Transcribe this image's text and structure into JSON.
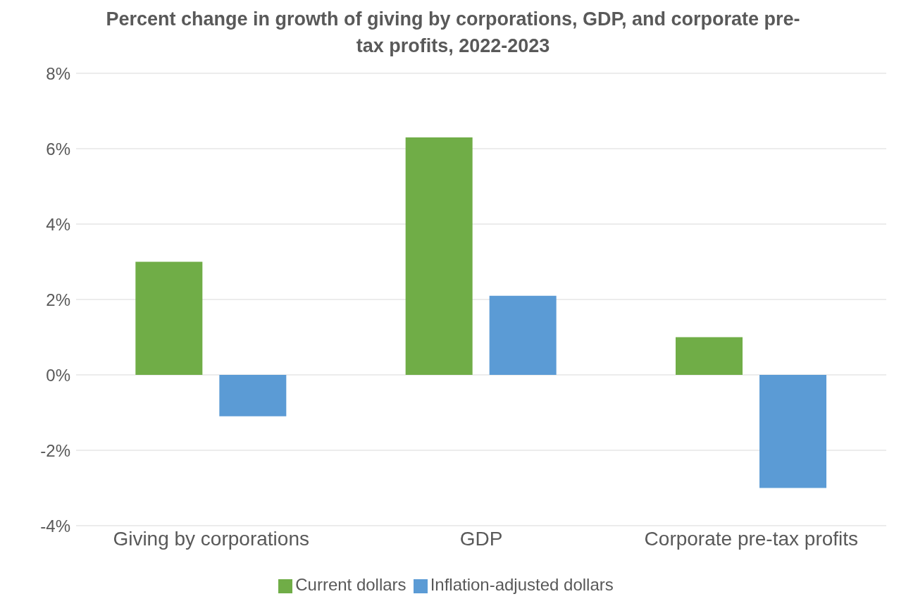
{
  "chart_data": {
    "type": "bar",
    "title": "Percent change in growth of giving by corporations, GDP, and corporate pre-tax profits, 2022-2023",
    "categories": [
      "Giving by corporations",
      "GDP",
      "Corporate pre-tax profits"
    ],
    "series": [
      {
        "name": "Current dollars",
        "color": "#70ad47",
        "values": [
          3.0,
          6.3,
          1.0
        ]
      },
      {
        "name": "Inflation-adjusted dollars",
        "color": "#5b9bd5",
        "values": [
          -1.1,
          2.1,
          -3.0
        ]
      }
    ],
    "ylim": [
      -4,
      8
    ],
    "yticks": [
      {
        "value": -4,
        "label": "-4%"
      },
      {
        "value": -2,
        "label": "-2%"
      },
      {
        "value": 0,
        "label": "0%"
      },
      {
        "value": 2,
        "label": "2%"
      },
      {
        "value": 4,
        "label": "4%"
      },
      {
        "value": 6,
        "label": "6%"
      },
      {
        "value": 8,
        "label": "8%"
      }
    ],
    "grid": "y",
    "legend": "bottom"
  }
}
